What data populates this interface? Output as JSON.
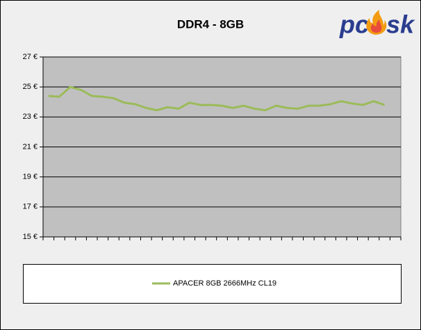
{
  "logo": {
    "left": "pc",
    "right": "sk"
  },
  "chart_data": {
    "type": "line",
    "title": "DDR4 - 8GB",
    "categories": [
      null,
      null,
      null,
      null,
      null,
      null,
      null,
      null,
      null,
      null,
      null,
      null,
      null,
      null,
      null,
      null,
      null,
      null,
      null,
      null,
      null,
      null,
      null,
      null,
      null,
      null,
      null,
      null,
      null,
      null,
      null,
      null,
      null
    ],
    "series": [
      {
        "name": "APACER 8GB 2666MHz CL19",
        "color": "#9bbb59",
        "values": [
          24.4,
          24.35,
          25.0,
          24.8,
          24.4,
          24.35,
          24.25,
          23.95,
          23.85,
          23.6,
          23.45,
          23.65,
          23.55,
          23.95,
          23.8,
          23.8,
          23.75,
          23.6,
          23.75,
          23.55,
          23.45,
          23.75,
          23.6,
          23.55,
          23.75,
          23.75,
          23.85,
          24.05,
          23.9,
          23.8,
          24.05,
          23.8,
          null
        ]
      }
    ],
    "ylim": [
      15,
      27
    ],
    "yticks": [
      {
        "value": 15,
        "label": "15 €"
      },
      {
        "value": 17,
        "label": "17 €"
      },
      {
        "value": 19,
        "label": "19 €"
      },
      {
        "value": 21,
        "label": "21 €"
      },
      {
        "value": 23,
        "label": "23 €"
      },
      {
        "value": 25,
        "label": "25 €"
      },
      {
        "value": 27,
        "label": "27 €"
      }
    ],
    "grid": true,
    "legend": "bottom"
  }
}
